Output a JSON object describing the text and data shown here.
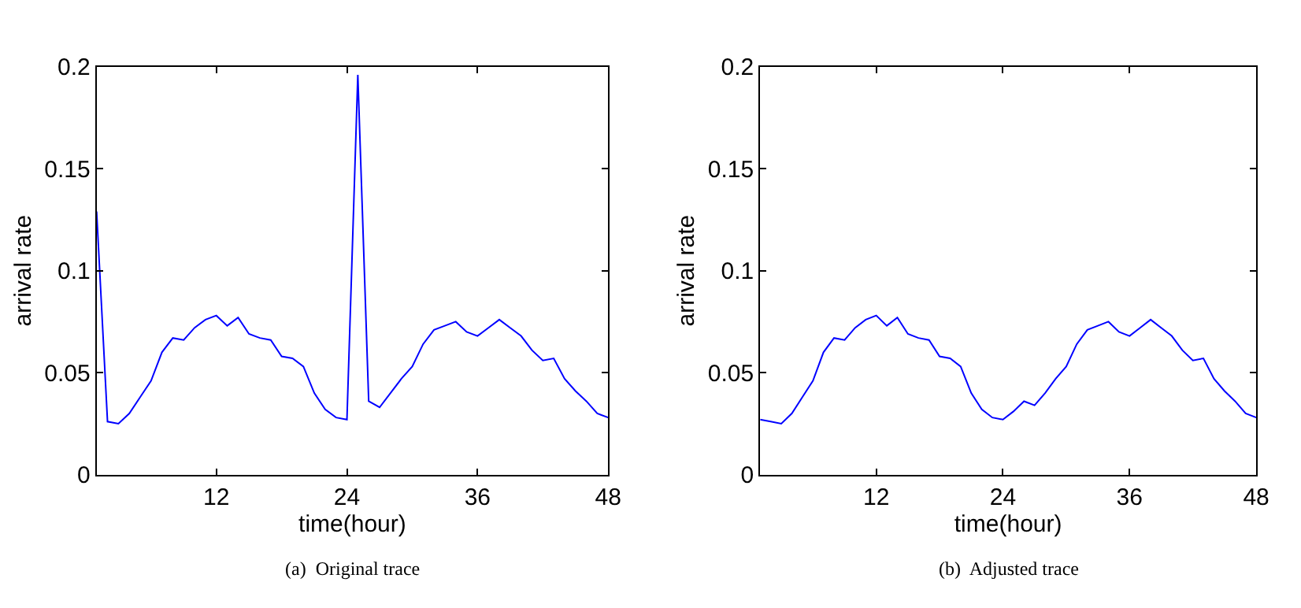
{
  "chart_data": [
    {
      "type": "line",
      "xlabel": "time(hour)",
      "ylabel": "arrival rate",
      "annotations": [
        "(a)  Original trace"
      ],
      "x": [
        1,
        2,
        3,
        4,
        5,
        6,
        7,
        8,
        9,
        10,
        11,
        12,
        13,
        14,
        15,
        16,
        17,
        18,
        19,
        20,
        21,
        22,
        23,
        24,
        25,
        26,
        27,
        28,
        29,
        30,
        31,
        32,
        33,
        34,
        35,
        36,
        37,
        38,
        39,
        40,
        41,
        42,
        43,
        44,
        45,
        46,
        47,
        48
      ],
      "series": [
        {
          "color": "#0000ff",
          "values": [
            0.129,
            0.026,
            0.025,
            0.03,
            0.038,
            0.046,
            0.06,
            0.067,
            0.066,
            0.072,
            0.076,
            0.078,
            0.073,
            0.077,
            0.069,
            0.067,
            0.066,
            0.058,
            0.057,
            0.053,
            0.04,
            0.032,
            0.028,
            0.027,
            0.196,
            0.036,
            0.033,
            0.04,
            0.047,
            0.053,
            0.064,
            0.071,
            0.073,
            0.075,
            0.07,
            0.068,
            0.072,
            0.076,
            0.072,
            0.068,
            0.061,
            0.056,
            0.057,
            0.047,
            0.041,
            0.036,
            0.03,
            0.028
          ]
        }
      ],
      "xlim": [
        1,
        48
      ],
      "xticks": [
        12,
        24,
        36,
        48
      ],
      "ylim": [
        0,
        0.2
      ],
      "yticks": [
        0,
        0.05,
        0.1,
        0.15,
        0.2
      ]
    },
    {
      "type": "line",
      "xlabel": "time(hour)",
      "ylabel": "arrival rate",
      "annotations": [
        "(b)  Adjusted trace"
      ],
      "x": [
        1,
        2,
        3,
        4,
        5,
        6,
        7,
        8,
        9,
        10,
        11,
        12,
        13,
        14,
        15,
        16,
        17,
        18,
        19,
        20,
        21,
        22,
        23,
        24,
        25,
        26,
        27,
        28,
        29,
        30,
        31,
        32,
        33,
        34,
        35,
        36,
        37,
        38,
        39,
        40,
        41,
        42,
        43,
        44,
        45,
        46,
        47,
        48
      ],
      "series": [
        {
          "color": "#0000ff",
          "values": [
            0.027,
            0.026,
            0.025,
            0.03,
            0.038,
            0.046,
            0.06,
            0.067,
            0.066,
            0.072,
            0.076,
            0.078,
            0.073,
            0.077,
            0.069,
            0.067,
            0.066,
            0.058,
            0.057,
            0.053,
            0.04,
            0.032,
            0.028,
            0.027,
            0.031,
            0.036,
            0.034,
            0.04,
            0.047,
            0.053,
            0.064,
            0.071,
            0.073,
            0.075,
            0.07,
            0.068,
            0.072,
            0.076,
            0.072,
            0.068,
            0.061,
            0.056,
            0.057,
            0.047,
            0.041,
            0.036,
            0.03,
            0.028
          ]
        }
      ],
      "xlim": [
        1,
        48
      ],
      "xticks": [
        12,
        24,
        36,
        48
      ],
      "ylim": [
        0,
        0.2
      ],
      "yticks": [
        0,
        0.05,
        0.1,
        0.15,
        0.2
      ]
    }
  ]
}
